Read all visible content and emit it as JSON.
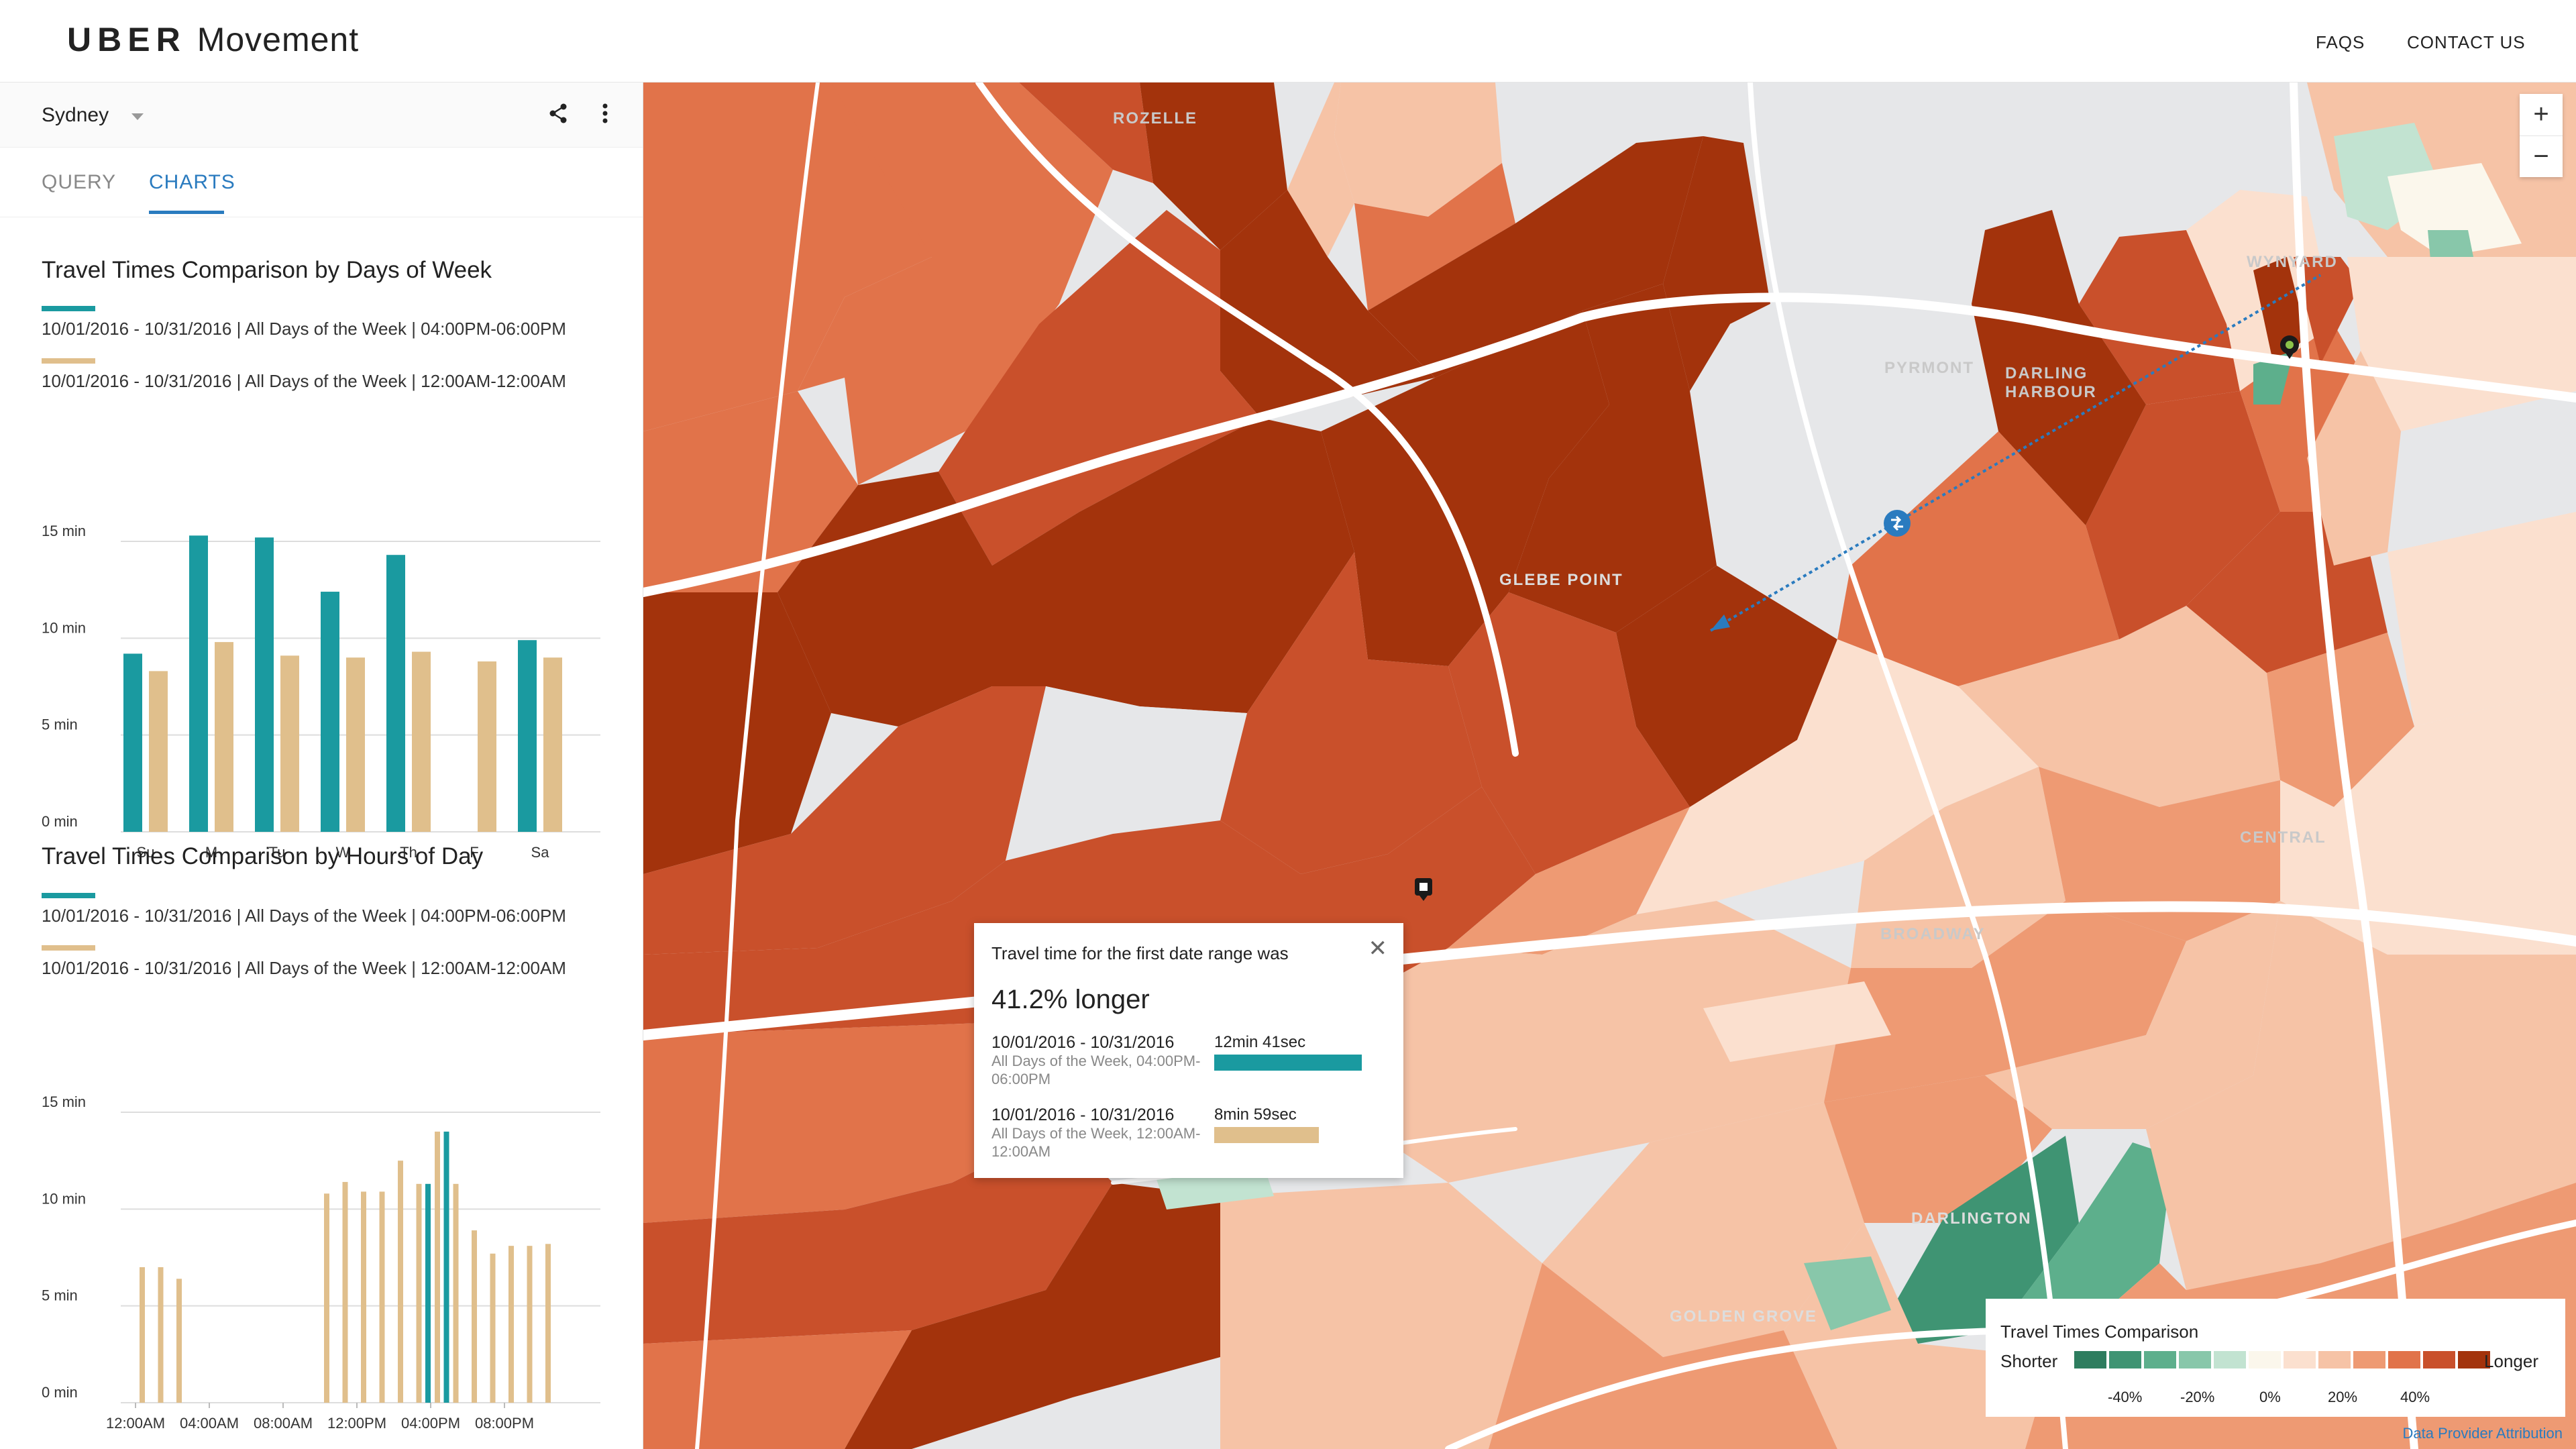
{
  "header": {
    "brand": "UBER",
    "product": "Movement",
    "nav": [
      "FAQS",
      "CONTACT US"
    ]
  },
  "sidebar": {
    "city": "Sydney",
    "icons": [
      "share-icon",
      "more-vertical-icon",
      "chevron-down-icon"
    ],
    "tabs": [
      "QUERY",
      "CHARTS"
    ],
    "active_tab": "CHARTS"
  },
  "colors": {
    "first_range": "#1a9aa0",
    "second_range": "#e0bf8c",
    "accent": "#2a7bbf"
  },
  "ranges": {
    "first": "10/01/2016 - 10/31/2016 | All Days of the Week | 04:00PM-06:00PM",
    "second": "10/01/2016 - 10/31/2016 | All Days of the Week | 12:00AM-12:00AM"
  },
  "chart_data": [
    {
      "type": "bar",
      "title": "Travel Times Comparison by Days of Week",
      "categories": [
        "Su",
        "M",
        "Tu",
        "W",
        "Th",
        "F",
        "Sa"
      ],
      "ylim": [
        0,
        15
      ],
      "yticks": [
        "0 min",
        "5 min",
        "10 min",
        "15 min"
      ],
      "series": [
        {
          "values": [
            9.2,
            15.3,
            15.2,
            12.4,
            14.3,
            null,
            9.9
          ]
        },
        {
          "values": [
            8.3,
            9.8,
            9.1,
            9.0,
            9.3,
            8.8,
            9.0
          ]
        }
      ],
      "grid": true
    },
    {
      "type": "bar",
      "title": "Travel Times Comparison by Hours of Day",
      "categories": [
        "12:00AM",
        "01:00AM",
        "02:00AM",
        "03:00AM",
        "04:00AM",
        "05:00AM",
        "06:00AM",
        "07:00AM",
        "08:00AM",
        "09:00AM",
        "10:00AM",
        "11:00AM",
        "12:00PM",
        "01:00PM",
        "02:00PM",
        "03:00PM",
        "04:00PM",
        "05:00PM",
        "06:00PM",
        "07:00PM",
        "08:00PM",
        "09:00PM",
        "10:00PM",
        "11:00PM"
      ],
      "xtick_labels": [
        "12:00AM",
        "04:00AM",
        "08:00AM",
        "12:00PM",
        "04:00PM",
        "08:00PM"
      ],
      "ylim": [
        0,
        15
      ],
      "yticks": [
        "0 min",
        "5 min",
        "10 min",
        "15 min"
      ],
      "series": [
        {
          "values": [
            null,
            null,
            null,
            null,
            null,
            null,
            null,
            null,
            null,
            null,
            null,
            null,
            null,
            null,
            null,
            null,
            11.3,
            14.0,
            null,
            null,
            null,
            null,
            null,
            null
          ]
        },
        {
          "values": [
            7.0,
            7.0,
            6.4,
            null,
            null,
            null,
            null,
            null,
            null,
            null,
            10.8,
            11.4,
            10.9,
            10.9,
            12.5,
            11.3,
            14.0,
            11.3,
            8.9,
            7.7,
            8.1,
            8.1,
            8.2,
            null
          ]
        }
      ],
      "grid": true
    }
  ],
  "popup": {
    "title": "Travel time for the first date range was",
    "percent": "41.2% longer",
    "close_icon": "close-icon",
    "rows": [
      {
        "date": "10/01/2016 - 10/31/2016",
        "detail": "All Days of the Week, 04:00PM-06:00PM",
        "value": "12min 41sec",
        "fraction": 1.0
      },
      {
        "date": "10/01/2016 - 10/31/2016",
        "detail": "All Days of the Week, 12:00AM-12:00AM",
        "value": "8min 59sec",
        "fraction": 0.708
      }
    ]
  },
  "zoom": {
    "in": "+",
    "out": "−"
  },
  "legend": {
    "title": "Travel Times Comparison",
    "left": "Shorter",
    "right": "Longer",
    "ticks": [
      "-40%",
      "-20%",
      "0%",
      "20%",
      "40%"
    ],
    "colors": [
      "#2e7d5f",
      "#3f9473",
      "#5daf8c",
      "#88c7aa",
      "#c2e3d1",
      "#fbf7ec",
      "#fbe0cf",
      "#f6c3a6",
      "#ee9a73",
      "#e1734a",
      "#c9502b",
      "#a3330c"
    ]
  },
  "map": {
    "labels": [
      "ROZELLE",
      "PYRMONT",
      "DARLING HARBOUR",
      "WYNYARD",
      "GLEBE POINT",
      "CENTRAL",
      "BROADWAY",
      "DARLINGTON",
      "GOLDEN GROVE"
    ],
    "icons": [
      "route-swap-icon",
      "origin-marker-icon",
      "destination-marker-icon"
    ]
  },
  "attribution": "Data Provider Attribution"
}
